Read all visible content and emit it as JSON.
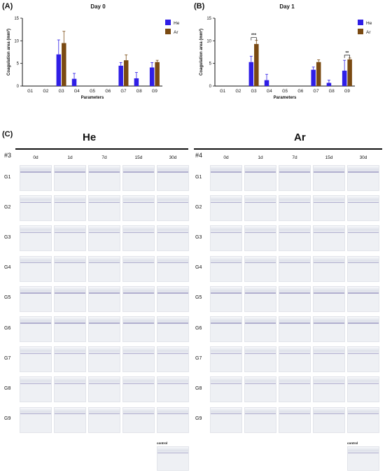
{
  "panels": {
    "a_label": "(A)",
    "b_label": "(B)",
    "c_label": "(C)"
  },
  "chart_data": [
    {
      "type": "bar",
      "title": "Day 0",
      "ylabel": "Coagulation area (mm²)",
      "xlabel": "Parameters",
      "ylim": [
        0,
        15
      ],
      "yticks": [
        0,
        5,
        10,
        15
      ],
      "categories": [
        "G1",
        "G2",
        "G3",
        "G4",
        "G5",
        "G6",
        "G7",
        "G8",
        "G9"
      ],
      "series": [
        {
          "name": "He",
          "color": "#2f1ee6",
          "values": [
            0,
            0,
            7.0,
            1.6,
            0,
            0,
            4.5,
            1.7,
            4.1
          ],
          "errors": [
            0,
            0,
            3.2,
            1.2,
            0,
            0,
            0.7,
            1.3,
            1.1
          ]
        },
        {
          "name": "Ar",
          "color": "#7a4a12",
          "values": [
            0,
            0,
            9.5,
            0,
            0,
            0,
            5.7,
            0,
            5.3
          ],
          "errors": [
            0,
            0,
            2.6,
            0,
            0,
            0,
            1.2,
            0,
            0.4
          ]
        }
      ],
      "legend_position": "top-right",
      "significance": []
    },
    {
      "type": "bar",
      "title": "Day 1",
      "ylabel": "Coagulation area (mm²)",
      "xlabel": "Parameters",
      "ylim": [
        0,
        15
      ],
      "yticks": [
        0,
        5,
        10,
        15
      ],
      "categories": [
        "G1",
        "G2",
        "G3",
        "G4",
        "G5",
        "G6",
        "G7",
        "G8",
        "G9"
      ],
      "series": [
        {
          "name": "He",
          "color": "#2f1ee6",
          "values": [
            0,
            0,
            5.3,
            1.3,
            0,
            0,
            3.6,
            0.7,
            3.4
          ],
          "errors": [
            0,
            0,
            1.3,
            1.3,
            0,
            0,
            0.6,
            0.6,
            2.3
          ]
        },
        {
          "name": "Ar",
          "color": "#7a4a12",
          "values": [
            0,
            0,
            9.3,
            0,
            0,
            0,
            5.3,
            0,
            5.9
          ],
          "errors": [
            0,
            0,
            0.8,
            0,
            0,
            0,
            0.5,
            0,
            0.3
          ]
        }
      ],
      "legend_position": "top-right",
      "significance": [
        {
          "category": "G3",
          "label": "***"
        },
        {
          "category": "G9",
          "label": "**"
        }
      ]
    }
  ],
  "histology": {
    "groups": [
      {
        "title": "He",
        "sample_id": "#3"
      },
      {
        "title": "Ar",
        "sample_id": "#4"
      }
    ],
    "time_points": [
      "0d",
      "1d",
      "7d",
      "15d",
      "30d"
    ],
    "rows": [
      "G1",
      "G2",
      "G3",
      "G4",
      "G5",
      "G6",
      "G7",
      "G8",
      "G9"
    ],
    "control_label": "control",
    "tile_color": "#eef0f4",
    "stain_color": "#8a86b8"
  }
}
